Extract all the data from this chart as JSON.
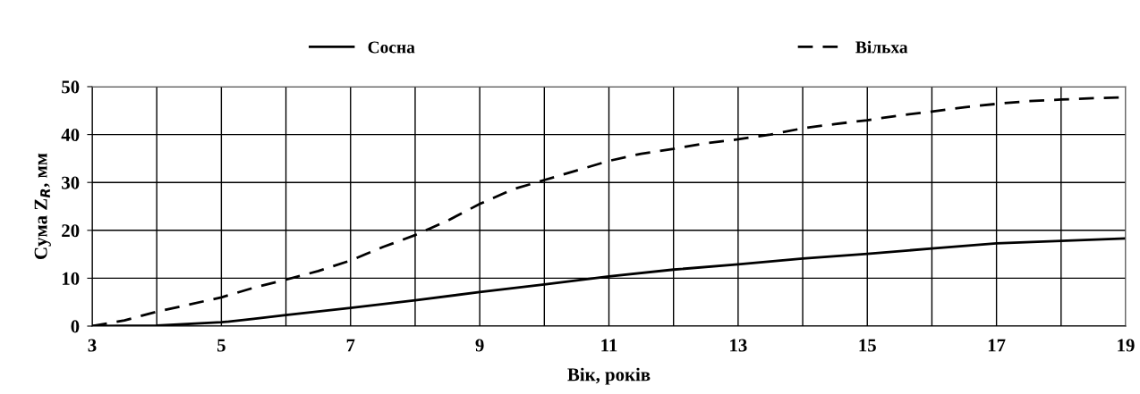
{
  "chart_data": {
    "type": "line",
    "xlabel": "Вік, років",
    "ylabel": "Сума Z$_{R}$, мм",
    "xlim": [
      3,
      19
    ],
    "xticks": [
      3,
      {
        "value": 4,
        "label": null
      },
      5,
      {
        "value": 6,
        "label": null
      },
      7,
      {
        "value": 8,
        "label": null
      },
      9,
      {
        "value": 10,
        "label": null
      },
      11,
      {
        "value": 12,
        "label": null
      },
      13,
      {
        "value": 14,
        "label": null
      },
      15,
      {
        "value": 16,
        "label": null
      },
      17,
      {
        "value": 18,
        "label": null
      },
      19
    ],
    "ylim": [
      0,
      50
    ],
    "yticks": [
      0,
      10,
      20,
      30,
      40,
      50
    ],
    "grid": true,
    "legend": "top",
    "marker": "none",
    "series": [
      {
        "name": "Сосна",
        "color": "#000000",
        "line_style": "solid",
        "x": [
          3,
          4,
          5,
          5.5,
          6,
          7,
          8,
          9,
          10,
          11,
          12,
          13,
          14,
          15,
          16,
          17,
          18,
          19
        ],
        "values": [
          0,
          0.1,
          0.8,
          1.5,
          2.3,
          3.8,
          5.4,
          7.1,
          8.7,
          10.4,
          11.8,
          12.9,
          14.1,
          15.1,
          16.2,
          17.3,
          17.8,
          18.3
        ]
      },
      {
        "name": "Вільха",
        "color": "#000000",
        "line_style": "dashed",
        "x": [
          3,
          3.5,
          4,
          4.5,
          5,
          5.5,
          6,
          6.5,
          7,
          7.5,
          8,
          8.5,
          9,
          9.5,
          10,
          10.5,
          11,
          11.5,
          12,
          12.5,
          13,
          13.5,
          14,
          14.5,
          15,
          15.5,
          16,
          16.5,
          17,
          17.5,
          18,
          18.5,
          19
        ],
        "values": [
          0,
          1.2,
          3,
          4.5,
          6,
          8,
          9.7,
          11.5,
          13.7,
          16.5,
          19,
          22,
          25.5,
          28.5,
          30.5,
          32.5,
          34.5,
          36,
          37,
          38.2,
          39,
          40,
          41.3,
          42.2,
          43,
          44,
          44.8,
          45.7,
          46.4,
          47,
          47.3,
          47.6,
          47.8
        ]
      }
    ]
  }
}
